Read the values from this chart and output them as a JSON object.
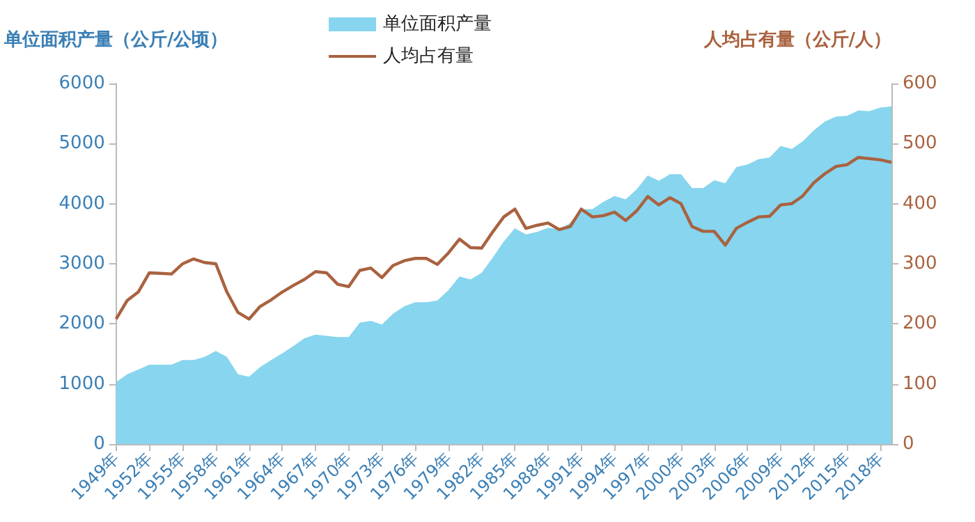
{
  "chart_data": {
    "type": "area",
    "ylabel": "单位面积产量（公斤/公顷）",
    "y2label": "人均占有量（公斤/人）",
    "categories": [
      "1949年",
      null,
      null,
      "1952年",
      null,
      null,
      "1955年",
      null,
      null,
      "1958年",
      null,
      null,
      "1961年",
      null,
      null,
      "1964年",
      null,
      null,
      "1967年",
      null,
      null,
      "1970年",
      null,
      null,
      "1973年",
      null,
      null,
      "1976年",
      null,
      null,
      "1979年",
      null,
      null,
      "1982年",
      null,
      null,
      "1985年",
      null,
      null,
      "1988年",
      null,
      null,
      "1991年",
      null,
      null,
      "1994年",
      null,
      null,
      "1997年",
      null,
      null,
      "2000年",
      null,
      null,
      "2003年",
      null,
      null,
      "2006年",
      null,
      null,
      "2009年",
      null,
      null,
      "2012年",
      null,
      null,
      "2015年",
      null,
      null,
      "2018年",
      null
    ],
    "series": [
      {
        "name": "单位面积产量",
        "type": "area",
        "color": "#87d5ee",
        "values": [
          1030,
          1160,
          1240,
          1320,
          1320,
          1320,
          1400,
          1400,
          1450,
          1550,
          1450,
          1160,
          1120,
          1280,
          1400,
          1510,
          1630,
          1760,
          1820,
          1800,
          1780,
          1780,
          2020,
          2050,
          1990,
          2170,
          2290,
          2360,
          2360,
          2390,
          2560,
          2790,
          2740,
          2850,
          3100,
          3370,
          3590,
          3490,
          3530,
          3600,
          3570,
          3680,
          3910,
          3910,
          4030,
          4130,
          4070,
          4240,
          4470,
          4380,
          4490,
          4490,
          4260,
          4260,
          4390,
          4340,
          4610,
          4650,
          4740,
          4770,
          4960,
          4910,
          5040,
          5220,
          5370,
          5450,
          5460,
          5550,
          5540,
          5600,
          5620
        ]
      },
      {
        "name": "人均占有量",
        "type": "line",
        "axis": "y2",
        "color": "#a9623f",
        "values": [
          208,
          239,
          253,
          285,
          284,
          283,
          300,
          308,
          302,
          300,
          253,
          219,
          208,
          229,
          240,
          253,
          264,
          274,
          287,
          285,
          266,
          262,
          289,
          293,
          277,
          297,
          305,
          309,
          309,
          299,
          318,
          341,
          327,
          326,
          353,
          378,
          391,
          359,
          364,
          368,
          357,
          362,
          391,
          378,
          380,
          386,
          372,
          388,
          412,
          398,
          410,
          400,
          362,
          354,
          354,
          331,
          359,
          369,
          378,
          379,
          398,
          400,
          413,
          435,
          450,
          462,
          465,
          477,
          475,
          473,
          469
        ]
      }
    ],
    "ylim": [
      0,
      6000
    ],
    "yticks": [
      0,
      1000,
      2000,
      3000,
      4000,
      5000,
      6000
    ],
    "y2lim": [
      0,
      600
    ],
    "y2ticks": [
      0,
      100,
      200,
      300,
      400,
      500,
      600
    ],
    "legend": "top",
    "grid": false,
    "marker": "none"
  }
}
